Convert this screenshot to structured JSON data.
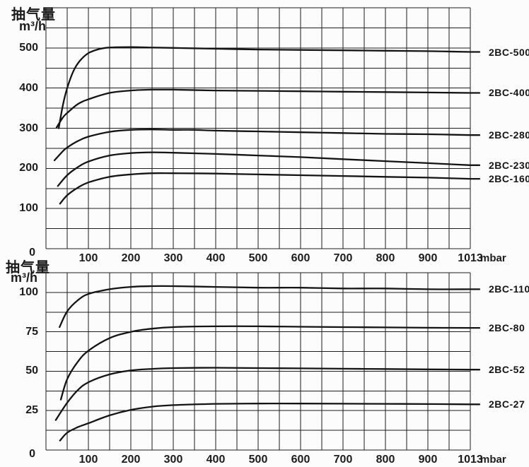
{
  "page": {
    "background": "#fcfcfc",
    "grid_color": "#1d1d1d",
    "curve_color": "#141414",
    "text_color": "#1b1b1b"
  },
  "chart_data": [
    {
      "type": "line",
      "title": "抽气量",
      "unit_label": "m³/h",
      "x_unit_label": "mbar",
      "x_range": [
        0,
        1013
      ],
      "y_range": [
        0,
        600
      ],
      "grid": {
        "x_step_mbar": 50,
        "y_step": 50,
        "grid_on": true
      },
      "x_tick_labels": [
        100,
        200,
        300,
        400,
        500,
        600,
        700,
        800,
        900,
        1013
      ],
      "y_tick_labels": [
        500,
        400,
        300,
        200,
        100,
        0
      ],
      "legend_position": "right",
      "series": [
        {
          "name": "2BC-500",
          "points": [
            [
              30,
              300
            ],
            [
              40,
              358
            ],
            [
              50,
              400
            ],
            [
              65,
              443
            ],
            [
              80,
              468
            ],
            [
              100,
              487
            ],
            [
              125,
              497
            ],
            [
              150,
              501
            ],
            [
              200,
              502
            ],
            [
              250,
              501
            ],
            [
              300,
              500
            ],
            [
              400,
              498
            ],
            [
              500,
              496
            ],
            [
              600,
              495
            ],
            [
              700,
              494
            ],
            [
              800,
              493
            ],
            [
              900,
              492
            ],
            [
              1013,
              490
            ]
          ]
        },
        {
          "name": "2BC-400",
          "points": [
            [
              25,
              302
            ],
            [
              40,
              327
            ],
            [
              50,
              338
            ],
            [
              75,
              360
            ],
            [
              100,
              372
            ],
            [
              150,
              388
            ],
            [
              200,
              394
            ],
            [
              250,
              396
            ],
            [
              300,
              396
            ],
            [
              400,
              394
            ],
            [
              500,
              393
            ],
            [
              600,
              392
            ],
            [
              700,
              391
            ],
            [
              800,
              390
            ],
            [
              900,
              389
            ],
            [
              1013,
              388
            ]
          ]
        },
        {
          "name": "2BC-280",
          "points": [
            [
              20,
              220
            ],
            [
              40,
              243
            ],
            [
              50,
              252
            ],
            [
              75,
              268
            ],
            [
              100,
              279
            ],
            [
              150,
              291
            ],
            [
              200,
              296
            ],
            [
              250,
              297
            ],
            [
              300,
              296
            ],
            [
              350,
              296
            ],
            [
              400,
              294
            ],
            [
              500,
              292
            ],
            [
              600,
              290
            ],
            [
              700,
              288
            ],
            [
              800,
              286
            ],
            [
              900,
              285
            ],
            [
              1013,
              283
            ]
          ]
        },
        {
          "name": "2BC-230",
          "points": [
            [
              28,
              156
            ],
            [
              50,
              183
            ],
            [
              75,
              203
            ],
            [
              100,
              217
            ],
            [
              150,
              232
            ],
            [
              200,
              238
            ],
            [
              250,
              240
            ],
            [
              300,
              239
            ],
            [
              400,
              236
            ],
            [
              500,
              232
            ],
            [
              600,
              228
            ],
            [
              700,
              223
            ],
            [
              800,
              218
            ],
            [
              900,
              213
            ],
            [
              1013,
              208
            ]
          ]
        },
        {
          "name": "2BC-160",
          "points": [
            [
              33,
              112
            ],
            [
              50,
              133
            ],
            [
              75,
              152
            ],
            [
              100,
              165
            ],
            [
              150,
              179
            ],
            [
              200,
              185
            ],
            [
              250,
              188
            ],
            [
              300,
              188
            ],
            [
              400,
              187
            ],
            [
              500,
              185
            ],
            [
              600,
              183
            ],
            [
              700,
              181
            ],
            [
              800,
              179
            ],
            [
              900,
              177
            ],
            [
              1013,
              174
            ]
          ]
        }
      ]
    },
    {
      "type": "line",
      "title": "抽气量",
      "unit_label": "m³/h",
      "x_unit_label": "mbar",
      "x_range": [
        0,
        1013
      ],
      "y_range": [
        0,
        112.5
      ],
      "grid": {
        "x_step_mbar": 50,
        "y_step": 12.5,
        "grid_on": true
      },
      "x_tick_labels": [
        100,
        200,
        300,
        400,
        500,
        600,
        700,
        800,
        900,
        1013
      ],
      "y_tick_labels": [
        100,
        75,
        50,
        25,
        0
      ],
      "legend_position": "right",
      "series": [
        {
          "name": "2BC-110",
          "points": [
            [
              32,
              78
            ],
            [
              50,
              88
            ],
            [
              75,
              95
            ],
            [
              100,
              99
            ],
            [
              150,
              102
            ],
            [
              200,
              103.5
            ],
            [
              250,
              104
            ],
            [
              300,
              104
            ],
            [
              400,
              103.5
            ],
            [
              500,
              103
            ],
            [
              600,
              103
            ],
            [
              700,
              102.5
            ],
            [
              800,
              102.5
            ],
            [
              900,
              102
            ],
            [
              1013,
              102
            ]
          ]
        },
        {
          "name": "2BC-80",
          "points": [
            [
              35,
              32
            ],
            [
              50,
              45
            ],
            [
              75,
              56
            ],
            [
              100,
              63
            ],
            [
              150,
              71
            ],
            [
              200,
              75
            ],
            [
              250,
              77
            ],
            [
              300,
              78
            ],
            [
              400,
              78.5
            ],
            [
              500,
              78.5
            ],
            [
              600,
              78.2
            ],
            [
              700,
              78
            ],
            [
              800,
              77.8
            ],
            [
              900,
              77.6
            ],
            [
              1013,
              77.5
            ]
          ]
        },
        {
          "name": "2BC-52",
          "points": [
            [
              23,
              19
            ],
            [
              50,
              30
            ],
            [
              75,
              38
            ],
            [
              100,
              43
            ],
            [
              150,
              48
            ],
            [
              200,
              50.5
            ],
            [
              250,
              51.5
            ],
            [
              300,
              52
            ],
            [
              400,
              52.2
            ],
            [
              500,
              52
            ],
            [
              600,
              51.8
            ],
            [
              700,
              51.6
            ],
            [
              800,
              51.4
            ],
            [
              900,
              51.2
            ],
            [
              1013,
              51
            ]
          ]
        },
        {
          "name": "2BC-27",
          "points": [
            [
              33,
              6
            ],
            [
              50,
              11
            ],
            [
              75,
              14.5
            ],
            [
              100,
              17
            ],
            [
              150,
              22
            ],
            [
              200,
              25.5
            ],
            [
              250,
              27.5
            ],
            [
              300,
              28.5
            ],
            [
              400,
              29.3
            ],
            [
              500,
              29.5
            ],
            [
              600,
              29.5
            ],
            [
              700,
              29.4
            ],
            [
              800,
              29.3
            ],
            [
              900,
              29.2
            ],
            [
              1013,
              29
            ]
          ]
        }
      ]
    }
  ]
}
